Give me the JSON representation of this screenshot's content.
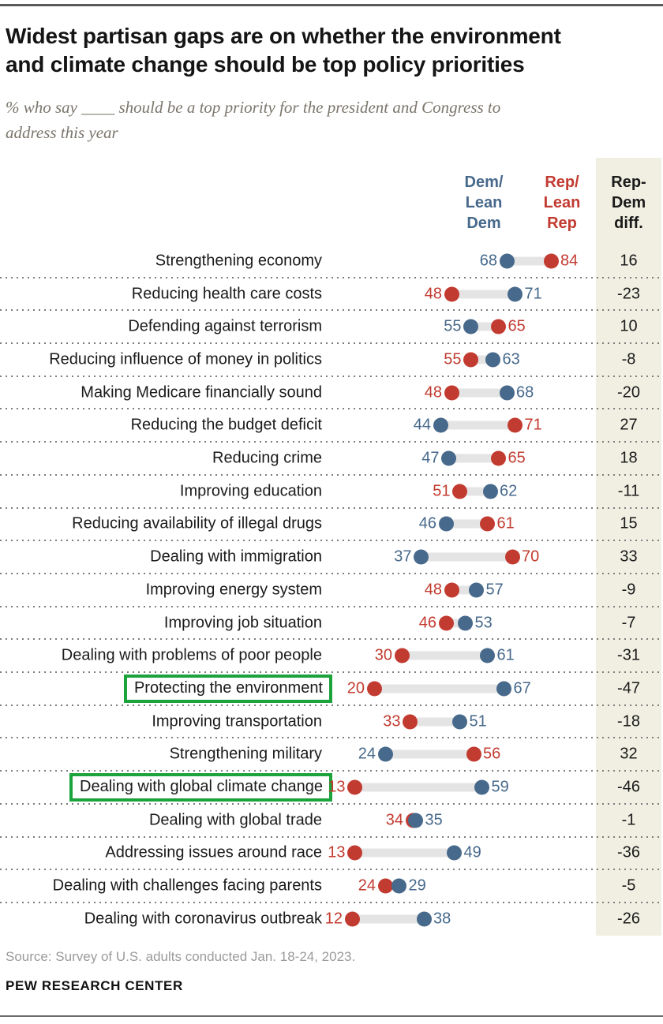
{
  "page": {
    "title_lines": [
      "Widest partisan gaps are on whether the environment",
      "and climate change should be top policy priorities"
    ],
    "subtitle_lines": [
      "% who say ____ should be a top priority for the president and Congress to",
      "address this year"
    ],
    "source": "Source: Survey of U.S. adults conducted Jan. 18-24, 2023.",
    "footer": "PEW RESEARCH CENTER"
  },
  "columns": {
    "dem_header": "Dem/\nLean\nDem",
    "rep_header": "Rep/\nLean\nRep",
    "diff_header": "Rep-\nDem\ndiff."
  },
  "colors": {
    "dem_blue": "#47698B",
    "rep_red": "#C23B30",
    "diff_bg_beige": "#F0EFE2",
    "connector_gray": "#E4E4E4",
    "highlight_green": "#1CA43C",
    "label_dark": "#1A1A1A",
    "subtitle_gray": "#7B756B",
    "source_gray": "#9B9B9B"
  },
  "chart_data": {
    "type": "scatter",
    "variant": "dumbbell-dot-plot",
    "title": "Widest partisan gaps are on whether the environment and climate change should be top policy priorities",
    "subtitle": "% who say ____ should be a top priority for the president and Congress to address this year",
    "value_unit": "%",
    "xlim": [
      0,
      100
    ],
    "legend_position": "top-of-columns",
    "grid": "dotted-row-separators",
    "categories": [
      "Strengthening economy",
      "Reducing health care costs",
      "Defending against terrorism",
      "Reducing influence of money in politics",
      "Making Medicare financially sound",
      "Reducing the budget deficit",
      "Reducing crime",
      "Improving education",
      "Reducing availability of illegal drugs",
      "Dealing with immigration",
      "Improving energy system",
      "Improving job situation",
      "Dealing with problems of poor people",
      "Protecting the environment",
      "Improving transportation",
      "Strengthening military",
      "Dealing with global climate change",
      "Dealing with global trade",
      "Addressing issues around race",
      "Dealing with challenges facing parents",
      "Dealing with coronavirus outbreak"
    ],
    "series": [
      {
        "name": "Dem/Lean Dem",
        "color": "#47698B",
        "values": [
          68,
          71,
          55,
          63,
          68,
          44,
          47,
          62,
          46,
          37,
          57,
          53,
          61,
          67,
          51,
          24,
          59,
          35,
          49,
          29,
          38
        ]
      },
      {
        "name": "Rep/Lean Rep",
        "color": "#C23B30",
        "values": [
          84,
          48,
          65,
          55,
          48,
          71,
          65,
          51,
          61,
          70,
          48,
          46,
          30,
          20,
          33,
          56,
          13,
          34,
          13,
          24,
          12
        ]
      }
    ],
    "diff_label": "Rep-Dem diff.",
    "diff_values": [
      16,
      -23,
      10,
      -8,
      -20,
      27,
      18,
      -11,
      15,
      33,
      -9,
      -7,
      -31,
      -47,
      -18,
      32,
      -46,
      -1,
      -36,
      -5,
      -26
    ],
    "highlighted_categories": [
      "Protecting the environment",
      "Dealing with global climate change"
    ]
  }
}
